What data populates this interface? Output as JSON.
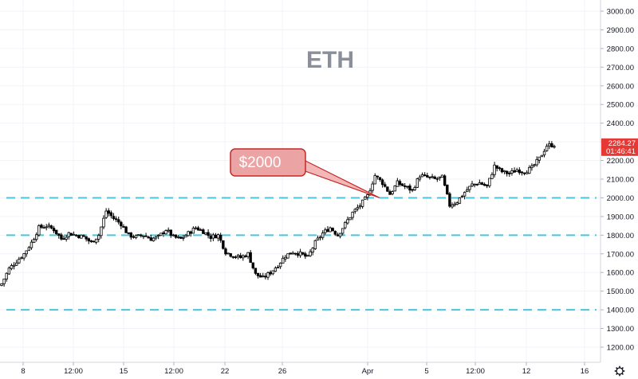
{
  "chart_data": {
    "type": "candlestick",
    "title": "ETH",
    "y_axis": {
      "position": "right",
      "range": [
        1150,
        3050
      ],
      "ticks": [
        1200,
        1300,
        1400,
        1500,
        1600,
        1700,
        1800,
        1900,
        2000,
        2100,
        2200,
        2300,
        2400,
        2500,
        2600,
        2700,
        2800,
        2900,
        3000
      ],
      "tick_labels": [
        "1200.00",
        "1300.00",
        "1400.00",
        "1500.00",
        "1600.00",
        "1700.00",
        "1800.00",
        "1900.00",
        "2000.00",
        "2100.00",
        "2200.00",
        "2300.00",
        "2400.00",
        "2500.00",
        "2600.00",
        "2700.00",
        "2800.00",
        "2900.00",
        "3000.00"
      ]
    },
    "x_axis": {
      "tick_labels": [
        "8",
        "12:00",
        "15",
        "12:00",
        "22",
        "26",
        "Apr",
        "5",
        "12:00",
        "12",
        "16"
      ]
    },
    "horizontal_lines": [
      {
        "value": 2000,
        "style": "dashed",
        "color": "#4fc3d9"
      },
      {
        "value": 1800,
        "style": "dashed",
        "color": "#4fc3d9"
      },
      {
        "value": 1400,
        "style": "dashed",
        "color": "#4fc3d9"
      }
    ],
    "annotation": {
      "text": "$2000",
      "target_value": 2000
    },
    "last_price": {
      "value": "2284.27",
      "countdown": "01:46:41",
      "color": "#e53935"
    },
    "grid": true,
    "colors": {
      "up": "#26a69a",
      "down": "#ef5350",
      "candle_up_fill": "#ffffff",
      "candle_down_fill": "#000000"
    },
    "series": {
      "close_path": [
        [
          0,
          1540
        ],
        [
          3,
          1620
        ],
        [
          6,
          1660
        ],
        [
          9,
          1700
        ],
        [
          12,
          1760
        ],
        [
          15,
          1840
        ],
        [
          18,
          1850
        ],
        [
          21,
          1830
        ],
        [
          24,
          1780
        ],
        [
          27,
          1810
        ],
        [
          30,
          1800
        ],
        [
          33,
          1790
        ],
        [
          36,
          1760
        ],
        [
          39,
          1800
        ],
        [
          42,
          1930
        ],
        [
          45,
          1890
        ],
        [
          48,
          1860
        ],
        [
          51,
          1800
        ],
        [
          54,
          1790
        ],
        [
          57,
          1800
        ],
        [
          60,
          1780
        ],
        [
          63,
          1790
        ],
        [
          66,
          1830
        ],
        [
          69,
          1790
        ],
        [
          72,
          1780
        ],
        [
          75,
          1810
        ],
        [
          78,
          1840
        ],
        [
          81,
          1820
        ],
        [
          84,
          1790
        ],
        [
          87,
          1800
        ],
        [
          90,
          1710
        ],
        [
          93,
          1690
        ],
        [
          96,
          1680
        ],
        [
          99,
          1700
        ],
        [
          102,
          1590
        ],
        [
          105,
          1570
        ],
        [
          108,
          1600
        ],
        [
          111,
          1640
        ],
        [
          114,
          1690
        ],
        [
          117,
          1710
        ],
        [
          120,
          1700
        ],
        [
          123,
          1680
        ],
        [
          126,
          1760
        ],
        [
          129,
          1810
        ],
        [
          132,
          1840
        ],
        [
          135,
          1800
        ],
        [
          138,
          1860
        ],
        [
          141,
          1920
        ],
        [
          144,
          1960
        ],
        [
          147,
          2010
        ],
        [
          150,
          2120
        ],
        [
          153,
          2080
        ],
        [
          156,
          2020
        ],
        [
          159,
          2080
        ],
        [
          162,
          2060
        ],
        [
          165,
          2040
        ],
        [
          168,
          2120
        ],
        [
          171,
          2110
        ],
        [
          174,
          2100
        ],
        [
          177,
          2110
        ],
        [
          180,
          1960
        ],
        [
          183,
          1980
        ],
        [
          186,
          2030
        ],
        [
          189,
          2070
        ],
        [
          192,
          2080
        ],
        [
          195,
          2060
        ],
        [
          198,
          2170
        ],
        [
          201,
          2140
        ],
        [
          204,
          2130
        ],
        [
          207,
          2150
        ],
        [
          210,
          2140
        ],
        [
          213,
          2160
        ],
        [
          216,
          2210
        ],
        [
          219,
          2280
        ],
        [
          222,
          2284
        ]
      ]
    }
  }
}
